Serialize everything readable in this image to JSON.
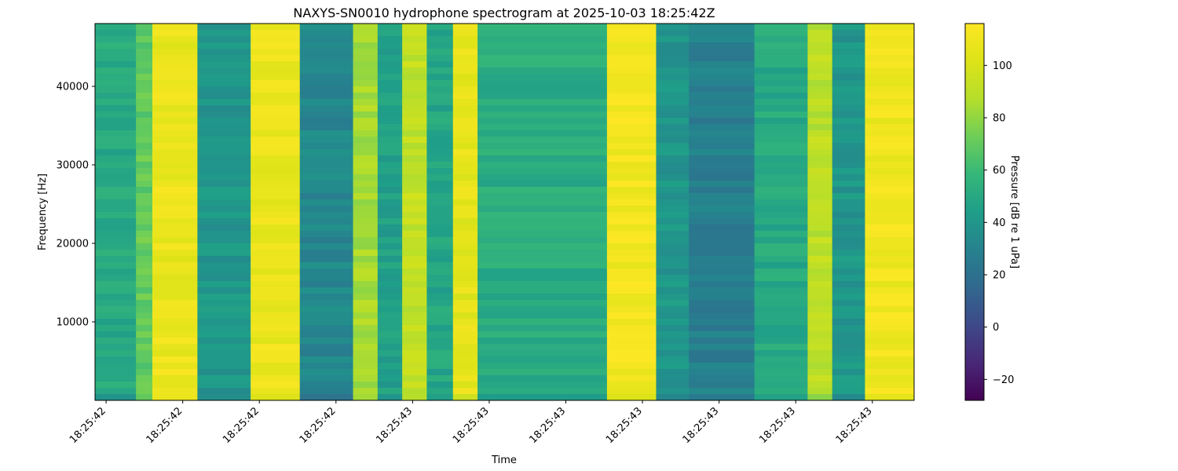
{
  "chart_data": {
    "type": "heatmap",
    "title": "NAXYS-SN0010 hydrophone spectrogram at 2025-10-03 18:25:42Z",
    "xlabel": "Time",
    "ylabel": "Frequency [Hz]",
    "colorbar_label": "Pressure [dB re 1 uPa]",
    "colormap": "viridis",
    "x_tick_labels": [
      "18:25:42",
      "18:25:42",
      "18:25:42",
      "18:25:42",
      "18:25:43",
      "18:25:43",
      "18:25:43",
      "18:25:43",
      "18:25:43",
      "18:25:43",
      "18:25:43"
    ],
    "y_ticks": [
      10000,
      20000,
      30000,
      40000
    ],
    "ylim": [
      0,
      48000
    ],
    "colorbar_ticks": [
      -20,
      0,
      20,
      40,
      60,
      80,
      100
    ],
    "colorbar_range": [
      -28,
      116
    ],
    "time_bands": [
      {
        "from": 0.0,
        "to": 0.05,
        "level": 50
      },
      {
        "from": 0.05,
        "to": 0.07,
        "level": 70
      },
      {
        "from": 0.07,
        "to": 0.125,
        "level": 108
      },
      {
        "from": 0.125,
        "to": 0.19,
        "level": 40
      },
      {
        "from": 0.19,
        "to": 0.25,
        "level": 108
      },
      {
        "from": 0.25,
        "to": 0.315,
        "level": 32
      },
      {
        "from": 0.315,
        "to": 0.345,
        "level": 85
      },
      {
        "from": 0.345,
        "to": 0.375,
        "level": 45
      },
      {
        "from": 0.375,
        "to": 0.405,
        "level": 92
      },
      {
        "from": 0.405,
        "to": 0.437,
        "level": 48
      },
      {
        "from": 0.437,
        "to": 0.467,
        "level": 105
      },
      {
        "from": 0.467,
        "to": 0.625,
        "level": 52
      },
      {
        "from": 0.625,
        "to": 0.685,
        "level": 112
      },
      {
        "from": 0.685,
        "to": 0.725,
        "level": 40
      },
      {
        "from": 0.725,
        "to": 0.805,
        "level": 28
      },
      {
        "from": 0.805,
        "to": 0.87,
        "level": 50
      },
      {
        "from": 0.87,
        "to": 0.9,
        "level": 90
      },
      {
        "from": 0.9,
        "to": 0.94,
        "level": 40
      },
      {
        "from": 0.94,
        "to": 1.0,
        "level": 110
      }
    ]
  }
}
